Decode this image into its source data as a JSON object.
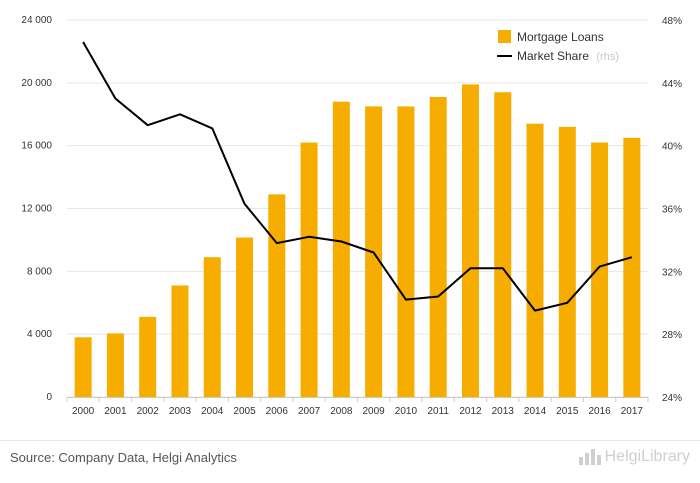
{
  "chart_data": {
    "type": "bar",
    "categories": [
      "2000",
      "2001",
      "2002",
      "2003",
      "2004",
      "2005",
      "2006",
      "2007",
      "2008",
      "2009",
      "2010",
      "2011",
      "2012",
      "2013",
      "2014",
      "2015",
      "2016",
      "2017"
    ],
    "series": [
      {
        "name": "Mortgage Loans",
        "type": "bar",
        "axis": "left",
        "color": "#f7ac00",
        "values": [
          3800,
          4050,
          5100,
          7100,
          8900,
          10150,
          12900,
          16200,
          18800,
          18500,
          18500,
          19100,
          19900,
          19400,
          17400,
          17200,
          16200,
          16500
        ]
      },
      {
        "name": "Market Share",
        "type": "line",
        "axis": "right",
        "color": "#000000",
        "values": [
          46.6,
          43.0,
          41.3,
          42.0,
          41.1,
          36.3,
          33.8,
          34.2,
          33.9,
          33.2,
          30.2,
          30.4,
          32.2,
          32.2,
          29.5,
          30.0,
          32.3,
          32.9
        ]
      }
    ],
    "left_axis": {
      "ylim": [
        0,
        24000
      ],
      "ticks": [
        "0",
        "4 000",
        "8 000",
        "12 000",
        "16 000",
        "20 000",
        "24 000"
      ]
    },
    "right_axis": {
      "ylim": [
        24,
        48
      ],
      "ticks": [
        "24%",
        "28%",
        "32%",
        "36%",
        "40%",
        "44%",
        "48%"
      ]
    },
    "legend": {
      "position": "top-right",
      "items": [
        {
          "label": "Mortgage Loans",
          "note": ""
        },
        {
          "label": "Market Share",
          "note": "(rhs)"
        }
      ]
    },
    "grid": true
  },
  "footer": {
    "source": "Source: Company Data, Helgi Analytics",
    "brand": "HelgiLibrary"
  }
}
